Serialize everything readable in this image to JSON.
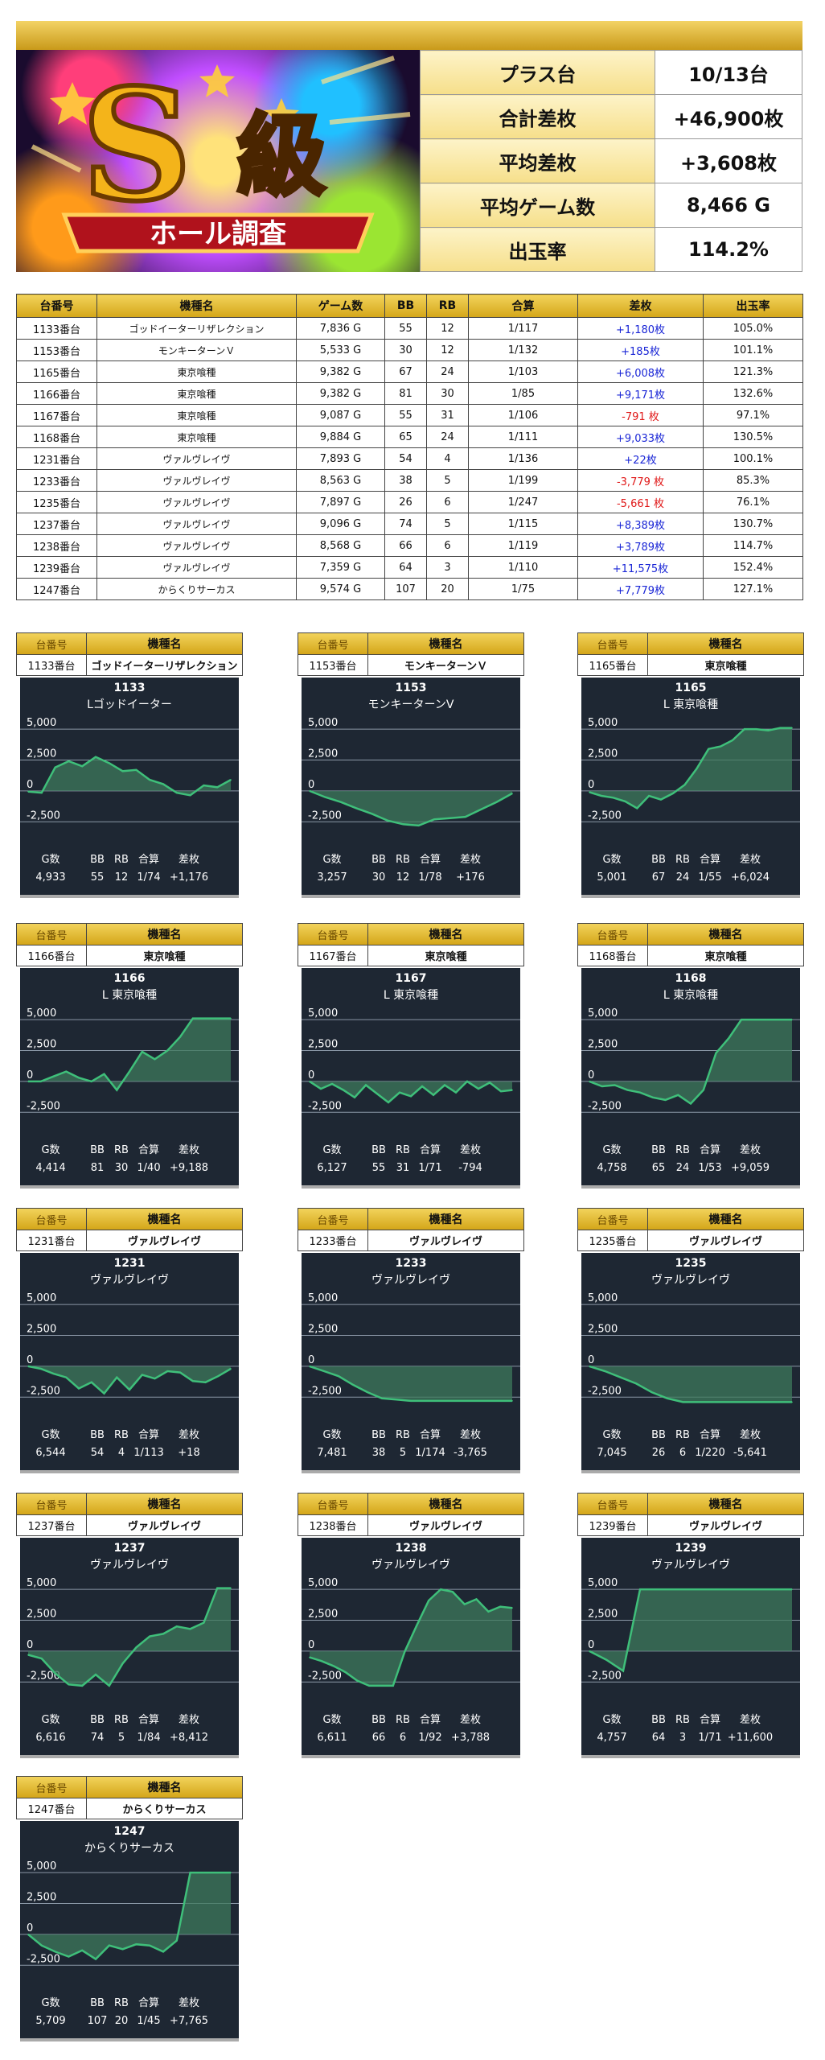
{
  "hero": {
    "badge": "S",
    "badge_text": "級",
    "banner": "ホール調査"
  },
  "summary": [
    {
      "label": "プラス台",
      "value": "10/13台"
    },
    {
      "label": "合計差枚",
      "value": "+46,900枚"
    },
    {
      "label": "平均差枚",
      "value": "+3,608枚"
    },
    {
      "label": "平均ゲーム数",
      "value": "8,466 G"
    },
    {
      "label": "出玉率",
      "value": "114.2%"
    }
  ],
  "table": {
    "headers": [
      "台番号",
      "機種名",
      "ゲーム数",
      "BB",
      "RB",
      "合算",
      "差枚",
      "出玉率"
    ],
    "rows": [
      [
        "1133番台",
        "ゴッドイーターリザレクション",
        "7,836 G",
        "55",
        "12",
        "1/117",
        "+1,180枚",
        "105.0%"
      ],
      [
        "1153番台",
        "モンキーターンＶ",
        "5,533 G",
        "30",
        "12",
        "1/132",
        "+185枚",
        "101.1%"
      ],
      [
        "1165番台",
        "東京喰種",
        "9,382 G",
        "67",
        "24",
        "1/103",
        "+6,008枚",
        "121.3%"
      ],
      [
        "1166番台",
        "東京喰種",
        "9,382 G",
        "81",
        "30",
        "1/85",
        "+9,171枚",
        "132.6%"
      ],
      [
        "1167番台",
        "東京喰種",
        "9,087 G",
        "55",
        "31",
        "1/106",
        "-791 枚",
        "97.1%"
      ],
      [
        "1168番台",
        "東京喰種",
        "9,884 G",
        "65",
        "24",
        "1/111",
        "+9,033枚",
        "130.5%"
      ],
      [
        "1231番台",
        "ヴァルヴレイヴ",
        "7,893 G",
        "54",
        "4",
        "1/136",
        "+22枚",
        "100.1%"
      ],
      [
        "1233番台",
        "ヴァルヴレイヴ",
        "8,563 G",
        "38",
        "5",
        "1/199",
        "-3,779 枚",
        "85.3%"
      ],
      [
        "1235番台",
        "ヴァルヴレイヴ",
        "7,897 G",
        "26",
        "6",
        "1/247",
        "-5,661 枚",
        "76.1%"
      ],
      [
        "1237番台",
        "ヴァルヴレイヴ",
        "9,096 G",
        "74",
        "5",
        "1/115",
        "+8,389枚",
        "130.7%"
      ],
      [
        "1238番台",
        "ヴァルヴレイヴ",
        "8,568 G",
        "66",
        "6",
        "1/119",
        "+3,789枚",
        "114.7%"
      ],
      [
        "1239番台",
        "ヴァルヴレイヴ",
        "7,359 G",
        "64",
        "3",
        "1/110",
        "+11,575枚",
        "152.4%"
      ],
      [
        "1247番台",
        "からくりサーカス",
        "9,574 G",
        "107",
        "20",
        "1/75",
        "+7,779枚",
        "127.1%"
      ]
    ]
  },
  "card_labels": {
    "machine_no": "台番号",
    "machine_name": "機種名"
  },
  "chart_data": [
    {
      "type": "area",
      "machine_no": "1133番台",
      "machine_name": "ゴッドイーターリザレクション",
      "title": "1133",
      "subtitle": "Lゴッドイーター",
      "ylim": [
        -3200,
        5400
      ],
      "yticks": [
        "5,000",
        "2,500",
        "0",
        "-2,500"
      ],
      "grid": true,
      "values": [
        -50,
        -150,
        1900,
        2400,
        2000,
        2750,
        2250,
        1600,
        1700,
        900,
        550,
        -150,
        -350,
        450,
        300,
        900
      ],
      "stats_labels": [
        "G数",
        "BB",
        "RB",
        "合算",
        "差枚"
      ],
      "stats": [
        "4,933",
        "55",
        "12",
        "1/74",
        "+1,176"
      ]
    },
    {
      "type": "area",
      "machine_no": "1153番台",
      "machine_name": "モンキーターンＶ",
      "title": "1153",
      "subtitle": "モンキーターンV",
      "ylim": [
        -3200,
        5400
      ],
      "yticks": [
        "5,000",
        "2,500",
        "0",
        "-2,500"
      ],
      "grid": true,
      "values": [
        0,
        -500,
        -900,
        -1400,
        -1850,
        -2400,
        -2700,
        -2800,
        -2300,
        -2200,
        -2100,
        -1500,
        -900,
        -200
      ],
      "stats_labels": [
        "G数",
        "BB",
        "RB",
        "合算",
        "差枚"
      ],
      "stats": [
        "3,257",
        "30",
        "12",
        "1/78",
        "+176"
      ]
    },
    {
      "type": "area",
      "machine_no": "1165番台",
      "machine_name": "東京喰種",
      "title": "1165",
      "subtitle": "L 東京喰種",
      "ylim": [
        -3200,
        5400
      ],
      "yticks": [
        "5,000",
        "2,500",
        "0",
        "-2,500"
      ],
      "grid": true,
      "values": [
        -100,
        -400,
        -550,
        -850,
        -1400,
        -400,
        -700,
        -200,
        500,
        1800,
        3400,
        3600,
        4100,
        5000,
        5000,
        4900,
        5100,
        5100
      ],
      "stats_labels": [
        "G数",
        "BB",
        "RB",
        "合算",
        "差枚"
      ],
      "stats": [
        "5,001",
        "67",
        "24",
        "1/55",
        "+6,024"
      ]
    },
    {
      "type": "area",
      "machine_no": "1166番台",
      "machine_name": "東京喰種",
      "title": "1166",
      "subtitle": "L 東京喰種",
      "ylim": [
        -3200,
        5400
      ],
      "yticks": [
        "5,000",
        "2,500",
        "0",
        "-2,500"
      ],
      "grid": true,
      "values": [
        0,
        0,
        400,
        800,
        300,
        0,
        600,
        -700,
        800,
        2400,
        1800,
        2500,
        3600,
        5100,
        5100,
        5100,
        5100
      ],
      "stats_labels": [
        "G数",
        "BB",
        "RB",
        "合算",
        "差枚"
      ],
      "stats": [
        "4,414",
        "81",
        "30",
        "1/40",
        "+9,188"
      ]
    },
    {
      "type": "area",
      "machine_no": "1167番台",
      "machine_name": "東京喰種",
      "title": "1167",
      "subtitle": "L 東京喰種",
      "ylim": [
        -3200,
        5400
      ],
      "yticks": [
        "5,000",
        "2,500",
        "0",
        "-2,500"
      ],
      "grid": true,
      "values": [
        0,
        -600,
        -200,
        -700,
        -1300,
        -300,
        -1000,
        -1700,
        -900,
        -1200,
        -400,
        -1100,
        -300,
        -900,
        0,
        -600,
        -100,
        -800,
        -700
      ],
      "stats_labels": [
        "G数",
        "BB",
        "RB",
        "合算",
        "差枚"
      ],
      "stats": [
        "6,127",
        "55",
        "31",
        "1/71",
        "-794"
      ]
    },
    {
      "type": "area",
      "machine_no": "1168番台",
      "machine_name": "東京喰種",
      "title": "1168",
      "subtitle": "L 東京喰種",
      "ylim": [
        -3200,
        5400
      ],
      "yticks": [
        "5,000",
        "2,500",
        "0",
        "-2,500"
      ],
      "grid": true,
      "values": [
        0,
        -400,
        -300,
        -700,
        -900,
        -1300,
        -1500,
        -1100,
        -1800,
        -700,
        2300,
        3500,
        5000,
        5000,
        5000,
        5000,
        5000
      ],
      "stats_labels": [
        "G数",
        "BB",
        "RB",
        "合算",
        "差枚"
      ],
      "stats": [
        "4,758",
        "65",
        "24",
        "1/53",
        "+9,059"
      ]
    },
    {
      "type": "area",
      "machine_no": "1231番台",
      "machine_name": "ヴァルヴレイヴ",
      "title": "1231",
      "subtitle": "ヴァルヴレイヴ",
      "ylim": [
        -3200,
        5400
      ],
      "yticks": [
        "5,000",
        "2,500",
        "0",
        "-2,500"
      ],
      "grid": true,
      "values": [
        0,
        -200,
        -600,
        -900,
        -1800,
        -1300,
        -2200,
        -900,
        -1900,
        -700,
        -1000,
        -400,
        -500,
        -1200,
        -1300,
        -800,
        -200
      ],
      "stats_labels": [
        "G数",
        "BB",
        "RB",
        "合算",
        "差枚"
      ],
      "stats": [
        "6,544",
        "54",
        "4",
        "1/113",
        "+18"
      ]
    },
    {
      "type": "area",
      "machine_no": "1233番台",
      "machine_name": "ヴァルヴレイヴ",
      "title": "1233",
      "subtitle": "ヴァルヴレイヴ",
      "ylim": [
        -3200,
        5400
      ],
      "yticks": [
        "5,000",
        "2,500",
        "0",
        "-2,500"
      ],
      "grid": true,
      "values": [
        0,
        -400,
        -800,
        -1500,
        -2100,
        -2600,
        -2700,
        -2800,
        -2800,
        -2800,
        -2800,
        -2800,
        -2800,
        -2800,
        -2800
      ],
      "stats_labels": [
        "G数",
        "BB",
        "RB",
        "合算",
        "差枚"
      ],
      "stats": [
        "7,481",
        "38",
        "5",
        "1/174",
        "-3,765"
      ]
    },
    {
      "type": "area",
      "machine_no": "1235番台",
      "machine_name": "ヴァルヴレイヴ",
      "title": "1235",
      "subtitle": "ヴァルヴレイヴ",
      "ylim": [
        -3200,
        5400
      ],
      "yticks": [
        "5,000",
        "2,500",
        "0",
        "-2,500"
      ],
      "grid": true,
      "values": [
        0,
        -400,
        -900,
        -1400,
        -2100,
        -2600,
        -2900,
        -2900,
        -2900,
        -2900,
        -2900,
        -2900,
        -2900,
        -2900
      ],
      "stats_labels": [
        "G数",
        "BB",
        "RB",
        "合算",
        "差枚"
      ],
      "stats": [
        "7,045",
        "26",
        "6",
        "1/220",
        "-5,641"
      ]
    },
    {
      "type": "area",
      "machine_no": "1237番台",
      "machine_name": "ヴァルヴレイヴ",
      "title": "1237",
      "subtitle": "ヴァルヴレイヴ",
      "ylim": [
        -3200,
        5400
      ],
      "yticks": [
        "5,000",
        "2,500",
        "0",
        "-2,500"
      ],
      "grid": true,
      "values": [
        -300,
        -600,
        -1800,
        -2700,
        -2800,
        -1900,
        -2800,
        -1000,
        300,
        1200,
        1400,
        2000,
        1800,
        2300,
        5100,
        5100
      ],
      "stats_labels": [
        "G数",
        "BB",
        "RB",
        "合算",
        "差枚"
      ],
      "stats": [
        "6,616",
        "74",
        "5",
        "1/84",
        "+8,412"
      ]
    },
    {
      "type": "area",
      "machine_no": "1238番台",
      "machine_name": "ヴァルヴレイヴ",
      "title": "1238",
      "subtitle": "ヴァルヴレイヴ",
      "ylim": [
        -3200,
        5400
      ],
      "yticks": [
        "5,000",
        "2,500",
        "0",
        "-2,500"
      ],
      "grid": true,
      "values": [
        -500,
        -800,
        -1200,
        -1700,
        -2400,
        -2800,
        -2800,
        -2800,
        0,
        2100,
        4100,
        5000,
        4800,
        3800,
        4200,
        3200,
        3600,
        3500
      ],
      "stats_labels": [
        "G数",
        "BB",
        "RB",
        "合算",
        "差枚"
      ],
      "stats": [
        "6,611",
        "66",
        "6",
        "1/92",
        "+3,788"
      ]
    },
    {
      "type": "area",
      "machine_no": "1239番台",
      "machine_name": "ヴァルヴレイヴ",
      "title": "1239",
      "subtitle": "ヴァルヴレイヴ",
      "ylim": [
        -3200,
        5400
      ],
      "yticks": [
        "5,000",
        "2,500",
        "0",
        "-2,500"
      ],
      "grid": true,
      "values": [
        0,
        -700,
        -1600,
        5000,
        5000,
        5000,
        5000,
        5000,
        5000,
        5000,
        5000,
        5000,
        5000
      ],
      "stats_labels": [
        "G数",
        "BB",
        "RB",
        "合算",
        "差枚"
      ],
      "stats": [
        "4,757",
        "64",
        "3",
        "1/71",
        "+11,600"
      ]
    },
    {
      "type": "area",
      "machine_no": "1247番台",
      "machine_name": "からくりサーカス",
      "title": "1247",
      "subtitle": "からくりサーカス",
      "ylim": [
        -3200,
        5400
      ],
      "yticks": [
        "5,000",
        "2,500",
        "0",
        "-2,500"
      ],
      "grid": true,
      "values": [
        0,
        -900,
        -1400,
        -1800,
        -1300,
        -2000,
        -900,
        -1200,
        -800,
        -900,
        -1400,
        -500,
        5000,
        5000,
        5000,
        5000
      ],
      "stats_labels": [
        "G数",
        "BB",
        "RB",
        "合算",
        "差枚"
      ],
      "stats": [
        "5,709",
        "107",
        "20",
        "1/45",
        "+7,765"
      ]
    }
  ],
  "colors": {
    "gold": "#d4a619",
    "panel": "#1e2733",
    "line": "#3fbf7a",
    "fill": "#3d7a5c",
    "positive": "#1a26d6",
    "negative": "#e01818"
  }
}
